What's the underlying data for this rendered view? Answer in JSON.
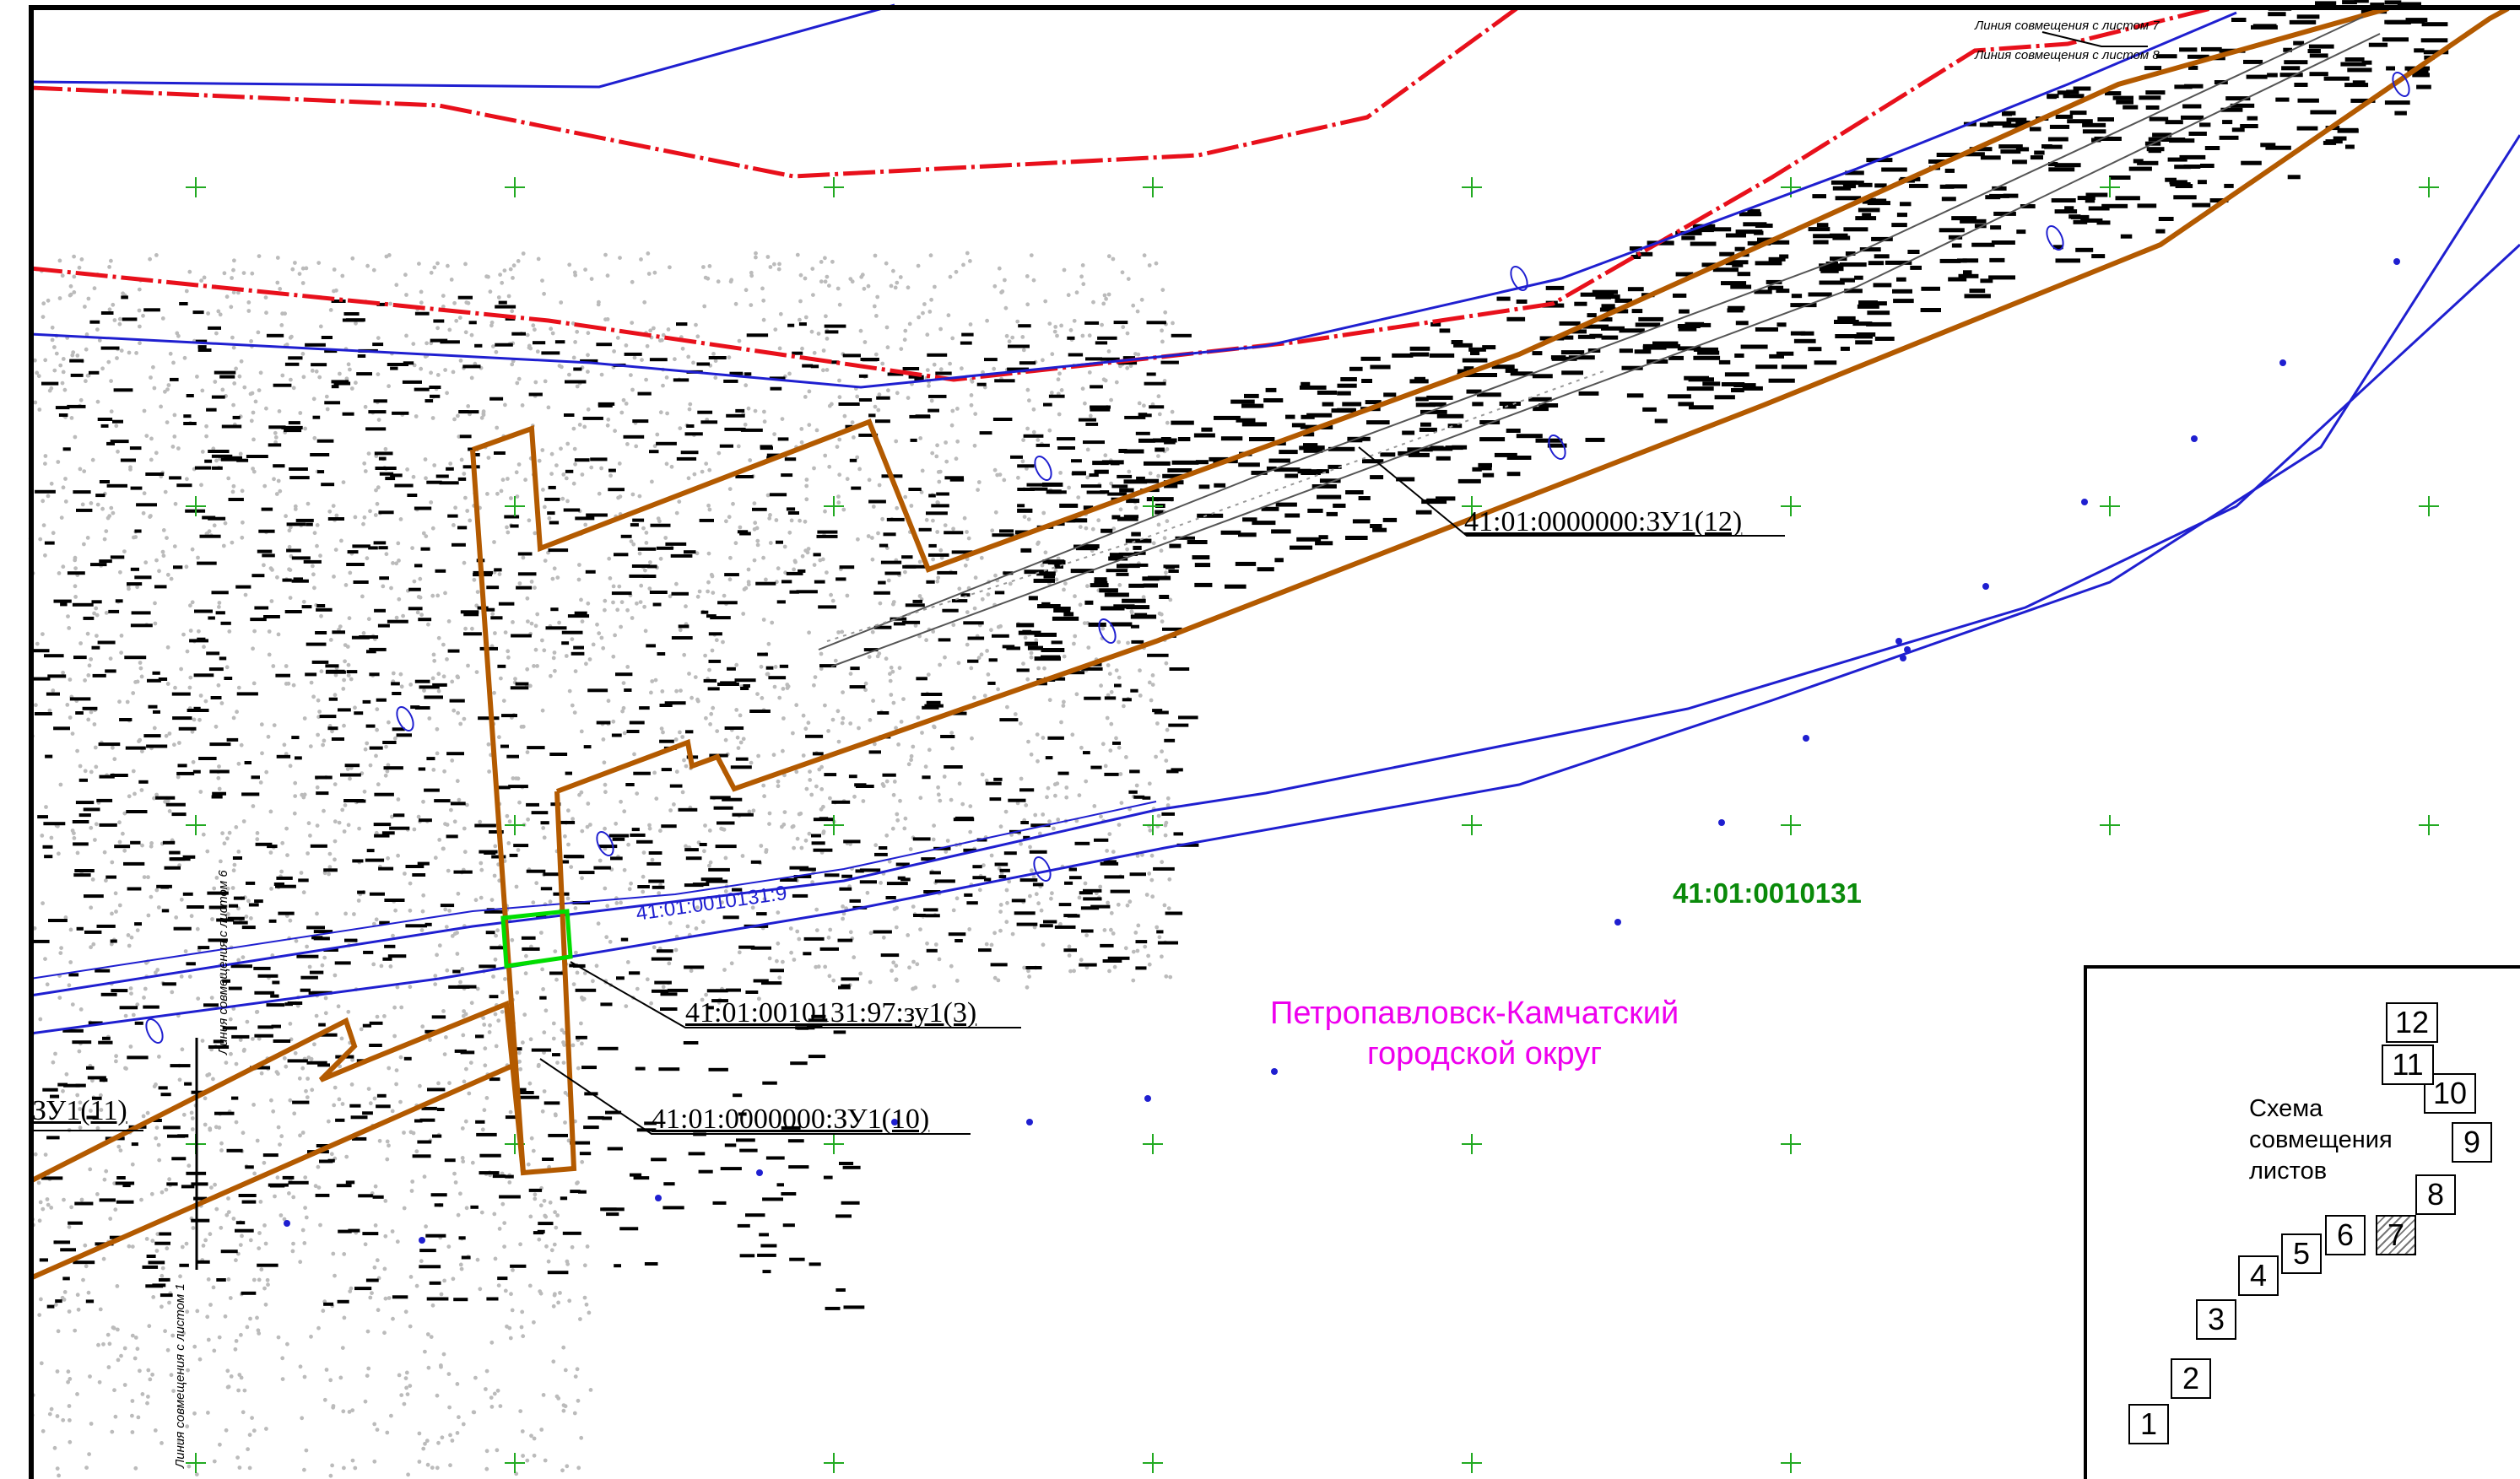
{
  "labels": {
    "parcel_12": "41:01:0000000:ЗУ1(12)",
    "parcel_3": "41:01:0010131:97:зу1(3)",
    "parcel_10": "41:01:0000000:ЗУ1(10)",
    "parcel_11": "ЗУ1(11)",
    "block_number": "41:01:0010131",
    "municipality_line1": "Петропавловск-Камчатский",
    "municipality_line2": "городской округ",
    "small_parcel": "41:01:0010131:9",
    "join_line_7": "Линия совмещения с листом 7",
    "join_line_8": "Линия совмещения с листом 8",
    "join_line_6": "Линия совмещения с листом 6",
    "join_line_1": "Линия совмещения с листом 1"
  },
  "legend": {
    "title": "Схема\nсовмещения\nлистов",
    "sheets": [
      "1",
      "2",
      "3",
      "4",
      "5",
      "6",
      "7",
      "8",
      "9",
      "10",
      "11",
      "12"
    ],
    "active_sheet": "7"
  },
  "colors": {
    "red_boundary": "#e8101b",
    "blue_line": "#1f1fd0",
    "orange_boundary": "#b35a00",
    "green_parcel": "#00dd00",
    "green_label": "#0a8a0a",
    "magenta_label": "#ee00ee"
  }
}
